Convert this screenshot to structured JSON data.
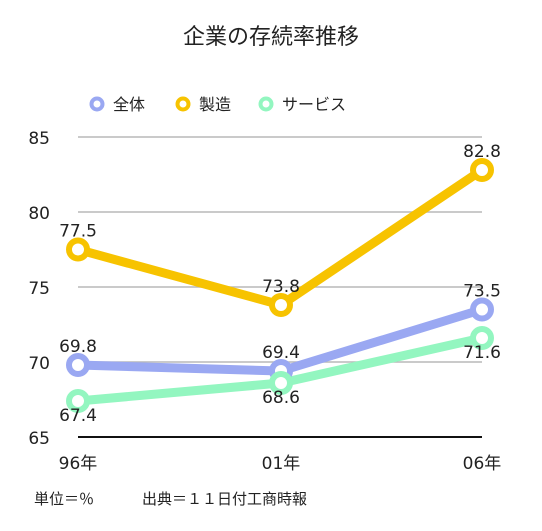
{
  "chart_data": {
    "type": "line",
    "title": "企業の存続率推移",
    "categories": [
      "96年",
      "01年",
      "06年"
    ],
    "ylim": [
      65,
      85
    ],
    "yticks": [
      65,
      70,
      75,
      80,
      85
    ],
    "grid": true,
    "legend_position": "top-left",
    "series": [
      {
        "name": "全体",
        "values": [
          69.8,
          69.4,
          73.5
        ],
        "color": "#9aa8f2"
      },
      {
        "name": "製造",
        "values": [
          77.5,
          73.8,
          82.8
        ],
        "color": "#f7c300"
      },
      {
        "name": "サービス",
        "values": [
          67.4,
          68.6,
          71.6
        ],
        "color": "#93f6c0"
      }
    ],
    "footnotes": {
      "unit": "単位＝％",
      "source": "出典＝１１日付工商時報"
    }
  }
}
